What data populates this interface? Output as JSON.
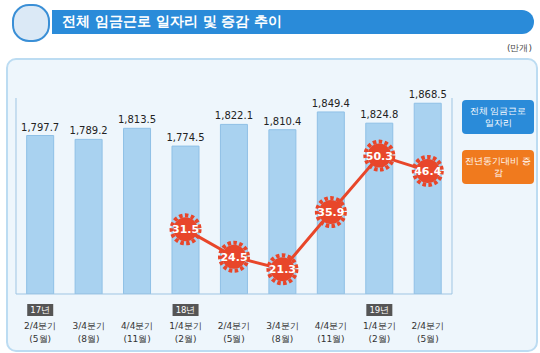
{
  "chart_data": {
    "type": "bar",
    "title": "전체 임금근로 일자리 및 증감 추이",
    "subtitle": "(만개)",
    "categories": [
      "17년 2/4분기 (5월)",
      "3/4분기 (8월)",
      "4/4분기 (11월)",
      "18년 1/4분기 (2월)",
      "2/4분기 (5월)",
      "3/4분기 (8월)",
      "4/4분기 (11월)",
      "19년 1/4분기 (2월)",
      "2/4분기 (5월)"
    ],
    "series": [
      {
        "name": "전체 임금근로 일자리",
        "type": "bar",
        "color": "#a9d2f0",
        "values": [
          1797.7,
          1789.2,
          1813.5,
          1774.5,
          1822.1,
          1810.4,
          1849.4,
          1824.8,
          1868.5
        ],
        "value_labels": [
          "1,797.7",
          "1,789.2",
          "1,813.5",
          "1,774.5",
          "1,822.1",
          "1,810.4",
          "1,849.4",
          "1,824.8",
          "1,868.5"
        ]
      },
      {
        "name": "전년동기대비 증감",
        "type": "line",
        "axis": "y2",
        "color": "#e8462a",
        "marker": "circle",
        "values": [
          null,
          null,
          null,
          31.5,
          24.5,
          21.3,
          35.9,
          50.3,
          46.4
        ]
      }
    ],
    "ylim": [
      1450,
      1880
    ],
    "y2lim": [
      15,
      65
    ],
    "data_labels": true,
    "tick_labels": "x",
    "grid": false,
    "legend": "top right"
  }
}
